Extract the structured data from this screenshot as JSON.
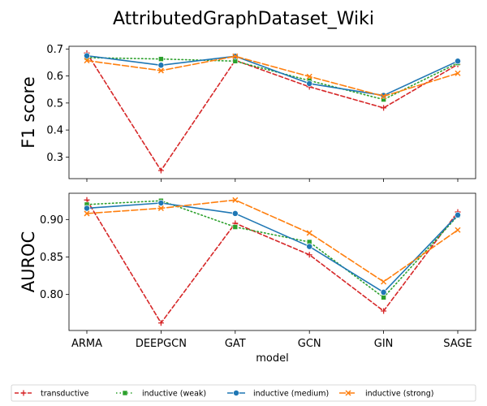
{
  "figure": {
    "title": "AttributedGraphDataset_Wiki"
  },
  "chart_data": [
    {
      "type": "line",
      "panel": "top",
      "ylabel": "F1 score",
      "xlabel": "",
      "categories": [
        "ARMA",
        "DEEPGCN",
        "GAT",
        "GCN",
        "GIN",
        "SAGE"
      ],
      "ylim": [
        0.22,
        0.71
      ],
      "yticks": [
        0.3,
        0.4,
        0.5,
        0.6,
        0.7
      ],
      "ytick_labels": [
        "0.3",
        "0.4",
        "0.5",
        "0.6",
        "0.7"
      ],
      "show_xtick_labels": false,
      "grid": false,
      "series": [
        {
          "name": "transductive",
          "values": [
            0.685,
            0.25,
            0.658,
            0.56,
            0.482,
            0.643
          ],
          "color": "#d62728",
          "dash": "5,3",
          "marker": "plus"
        },
        {
          "name": "inductive (weak)",
          "values": [
            0.668,
            0.663,
            0.655,
            0.583,
            0.513,
            0.648
          ],
          "color": "#2ca02c",
          "dash": "1.5,3",
          "marker": "square"
        },
        {
          "name": "inductive (medium)",
          "values": [
            0.675,
            0.64,
            0.673,
            0.572,
            0.528,
            0.655
          ],
          "color": "#1f77b4",
          "dash": "",
          "marker": "circle"
        },
        {
          "name": "inductive (strong)",
          "values": [
            0.657,
            0.62,
            0.673,
            0.598,
            0.525,
            0.61
          ],
          "color": "#ff7f0e",
          "dash": "8,3",
          "marker": "x"
        }
      ]
    },
    {
      "type": "line",
      "panel": "bottom",
      "ylabel": "AUROC",
      "xlabel": "model",
      "categories": [
        "ARMA",
        "DEEPGCN",
        "GAT",
        "GCN",
        "GIN",
        "SAGE"
      ],
      "ylim": [
        0.752,
        0.935
      ],
      "yticks": [
        0.8,
        0.85,
        0.9
      ],
      "ytick_labels": [
        "0.80",
        "0.85",
        "0.90"
      ],
      "show_xtick_labels": true,
      "grid": false,
      "series": [
        {
          "name": "transductive",
          "values": [
            0.926,
            0.762,
            0.895,
            0.853,
            0.778,
            0.91
          ],
          "color": "#d62728",
          "dash": "5,3",
          "marker": "plus"
        },
        {
          "name": "inductive (weak)",
          "values": [
            0.92,
            0.925,
            0.89,
            0.87,
            0.796,
            0.905
          ],
          "color": "#2ca02c",
          "dash": "1.5,3",
          "marker": "square"
        },
        {
          "name": "inductive (medium)",
          "values": [
            0.915,
            0.922,
            0.908,
            0.864,
            0.803,
            0.906
          ],
          "color": "#1f77b4",
          "dash": "",
          "marker": "circle"
        },
        {
          "name": "inductive (strong)",
          "values": [
            0.908,
            0.915,
            0.926,
            0.882,
            0.817,
            0.886
          ],
          "color": "#ff7f0e",
          "dash": "8,3",
          "marker": "x"
        }
      ]
    }
  ],
  "legend": {
    "placement": "bottom",
    "entries": [
      "transductive",
      "inductive (weak)",
      "inductive (medium)",
      "inductive (strong)"
    ]
  }
}
